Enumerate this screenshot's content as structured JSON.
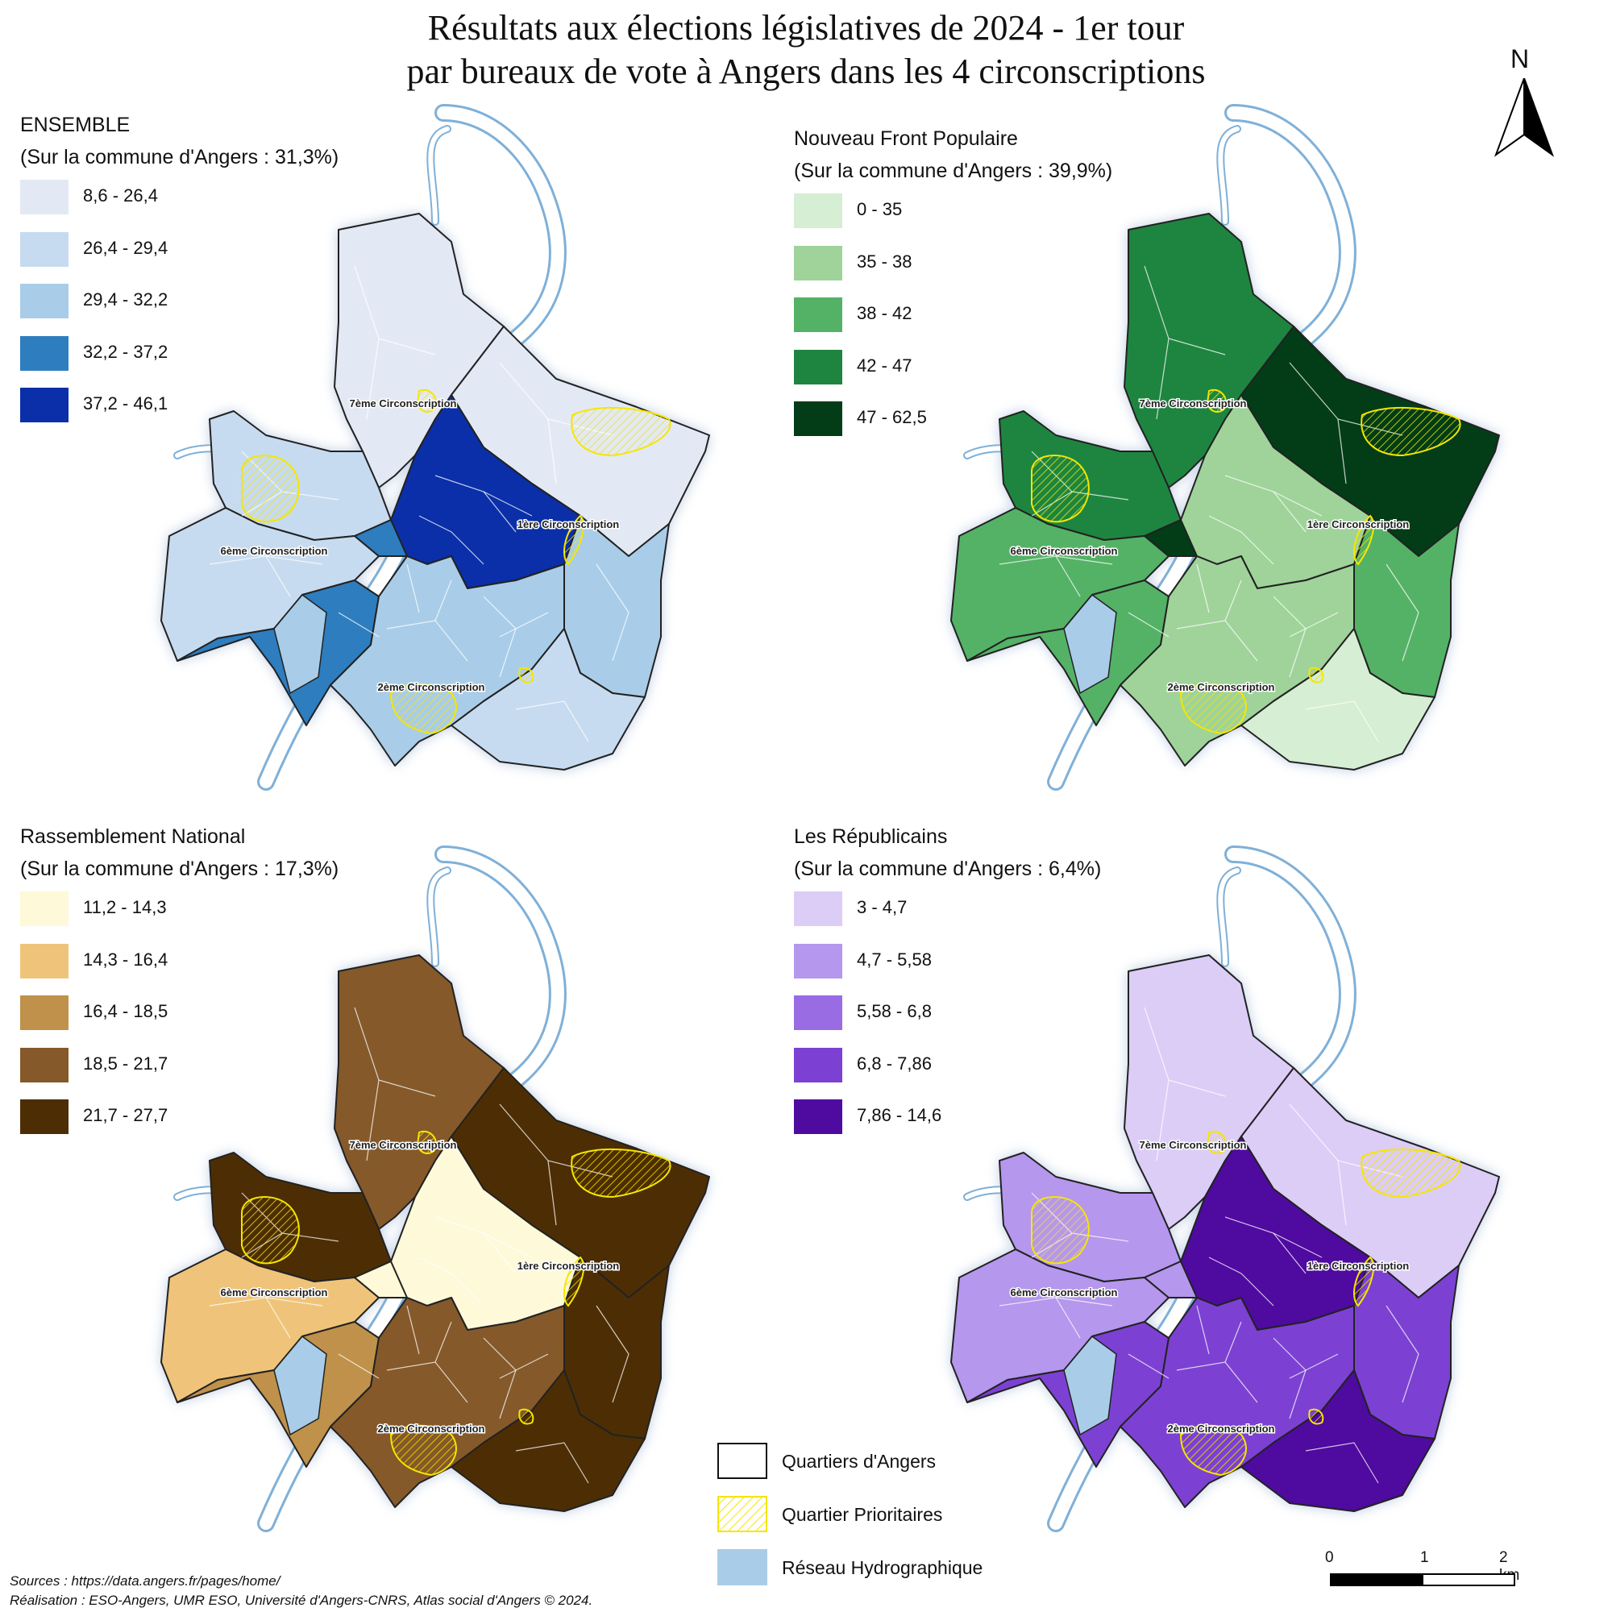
{
  "title": {
    "line1": "Résultats aux élections législatives de 2024 - 1er tour",
    "line2": "par bureaux de vote à Angers dans les 4 circonscriptions"
  },
  "north_arrow": {
    "label": "N"
  },
  "circonscriptions": {
    "first": "1ère Circonscription",
    "second": "2ème Circonscription",
    "sixth": "6ème Circonscription",
    "seventh": "7ème Circonscription"
  },
  "maps": [
    {
      "id": "ensemble",
      "title": "ENSEMBLE",
      "subtitle": "(Sur la commune d'Angers : 31,3%)",
      "classes": [
        {
          "label": "8,6 - 26,4",
          "color": "#e3e9f4"
        },
        {
          "label": "26,4 - 29,4",
          "color": "#c7dbf0"
        },
        {
          "label": "29,4 - 32,2",
          "color": "#a9cde8"
        },
        {
          "label": "32,2 - 37,2",
          "color": "#2e7dbf"
        },
        {
          "label": "37,2 - 46,1",
          "color": "#0a2fa8"
        }
      ],
      "district_classes": {
        "north": 0,
        "northwest": 1,
        "west": 1,
        "sw": 3,
        "center": 4,
        "ne": 0,
        "east": 2,
        "south": 2,
        "se": 1,
        "river_band": 3
      }
    },
    {
      "id": "nfp",
      "title": "Nouveau Front Populaire",
      "subtitle": "(Sur la commune d'Angers : 39,9%)",
      "classes": [
        {
          "label": "0 - 35",
          "color": "#d6eed3"
        },
        {
          "label": "35 - 38",
          "color": "#9fd39a"
        },
        {
          "label": "38 - 42",
          "color": "#54b266"
        },
        {
          "label": "42 - 47",
          "color": "#1e8540"
        },
        {
          "label": "47 - 62,5",
          "color": "#023d17"
        }
      ],
      "district_classes": {
        "north": 3,
        "northwest": 3,
        "west": 2,
        "sw": 2,
        "center": 1,
        "ne": 4,
        "east": 2,
        "south": 1,
        "se": 0,
        "river_band": 4
      }
    },
    {
      "id": "rn",
      "title": "Rassemblement National",
      "subtitle": "(Sur la commune d'Angers : 17,3%)",
      "classes": [
        {
          "label": "11,2 - 14,3",
          "color": "#fdf9d9"
        },
        {
          "label": "14,3 - 16,4",
          "color": "#efc47a"
        },
        {
          "label": "16,4 - 18,5",
          "color": "#bf914a"
        },
        {
          "label": "18,5 - 21,7",
          "color": "#85592a"
        },
        {
          "label": "21,7 - 27,7",
          "color": "#4d2e04"
        }
      ],
      "district_classes": {
        "north": 3,
        "northwest": 4,
        "west": 1,
        "sw": 2,
        "center": 0,
        "ne": 4,
        "east": 4,
        "south": 3,
        "se": 4,
        "river_band": 0
      }
    },
    {
      "id": "lr",
      "title": "Les Républicains",
      "subtitle": "(Sur la commune d'Angers : 6,4%)",
      "classes": [
        {
          "label": "3 - 4,7",
          "color": "#dccdf7"
        },
        {
          "label": "4,7 - 5,58",
          "color": "#b597ee"
        },
        {
          "label": "5,58 - 6,8",
          "color": "#9a6ce3"
        },
        {
          "label": "6,8 - 7,86",
          "color": "#7c41d2"
        },
        {
          "label": "7,86 - 14,6",
          "color": "#4f0aa0"
        }
      ],
      "district_classes": {
        "north": 0,
        "northwest": 1,
        "west": 1,
        "sw": 3,
        "center": 4,
        "ne": 0,
        "east": 3,
        "south": 3,
        "se": 4,
        "river_band": 1
      }
    }
  ],
  "key_legend": [
    {
      "label": "Quartiers d'Angers",
      "style": "outline"
    },
    {
      "label": "Quartier Prioritaires",
      "style": "hatch"
    },
    {
      "label": "Réseau Hydrographique",
      "style": "water",
      "color": "#a9cde8"
    }
  ],
  "scale": {
    "ticks": [
      "0",
      "1",
      "2 km"
    ]
  },
  "sources": {
    "line1": "Sources : https://data.angers.fr/pages/home/",
    "line2": "Réalisation : ESO-Angers, UMR ESO, Université d'Angers-CNRS, Atlas social d'Angers © 2024."
  }
}
